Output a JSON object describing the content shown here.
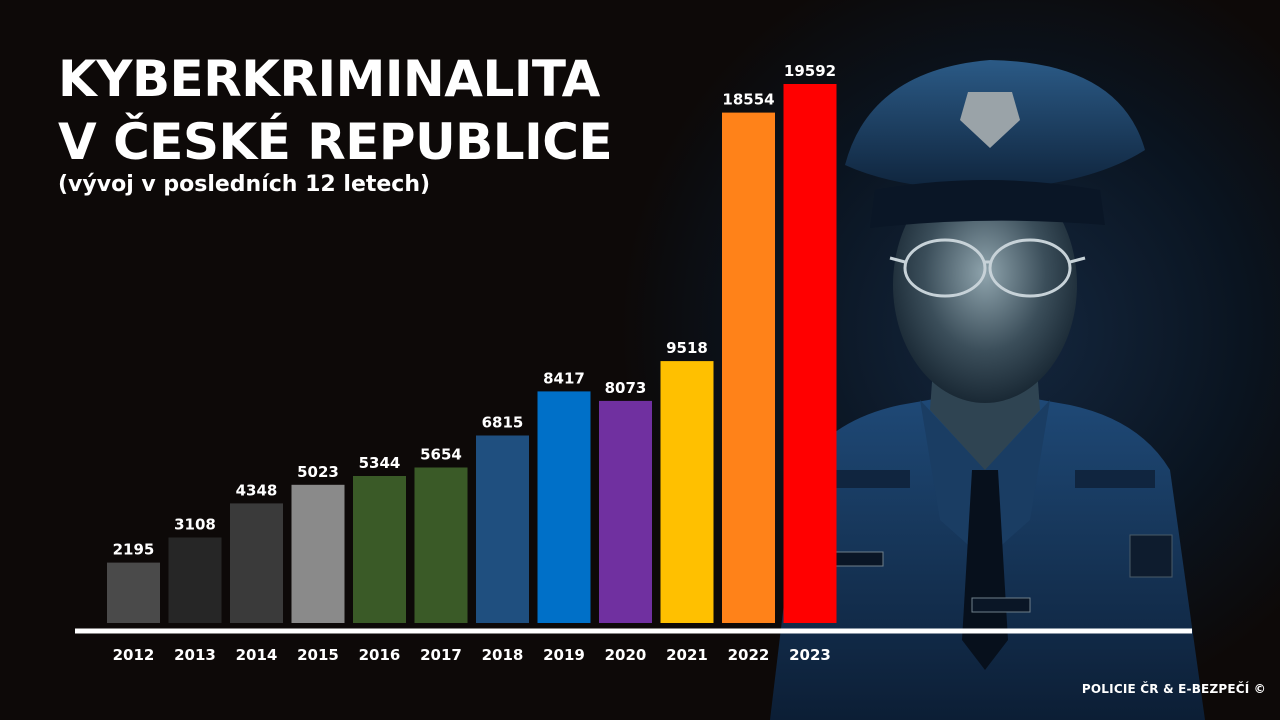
{
  "title_line1": "KYBERKRIMINALITA",
  "title_line2": "V ČESKÉ REPUBLICE",
  "subtitle": "(vývoj v posledních 12 letech)",
  "credit": "POLICIE ČR & E-BEZPEČÍ ©",
  "colors": {
    "background": "#0d0908",
    "axis": "#ffffff",
    "text": "#ffffff"
  },
  "chart_data": {
    "type": "bar",
    "title": "KYBERKRIMINALITA V ČESKÉ REPUBLICE",
    "subtitle": "(vývoj v posledních 12 letech)",
    "xlabel": "",
    "ylabel": "",
    "categories": [
      "2012",
      "2013",
      "2014",
      "2015",
      "2016",
      "2017",
      "2018",
      "2019",
      "2020",
      "2021",
      "2022",
      "2023"
    ],
    "values": [
      2195,
      3108,
      4348,
      5023,
      5344,
      5654,
      6815,
      8417,
      8073,
      9518,
      18554,
      19592
    ],
    "bar_colors": [
      "#4a4a4a",
      "#262626",
      "#3a3a3a",
      "#8a8a8a",
      "#3a5a27",
      "#3a5a27",
      "#1f4f7f",
      "#0070c8",
      "#7030a0",
      "#ffc000",
      "#ff8219",
      "#ff0000"
    ],
    "ylim": [
      0,
      20000
    ],
    "grid": false,
    "legend": "none"
  }
}
